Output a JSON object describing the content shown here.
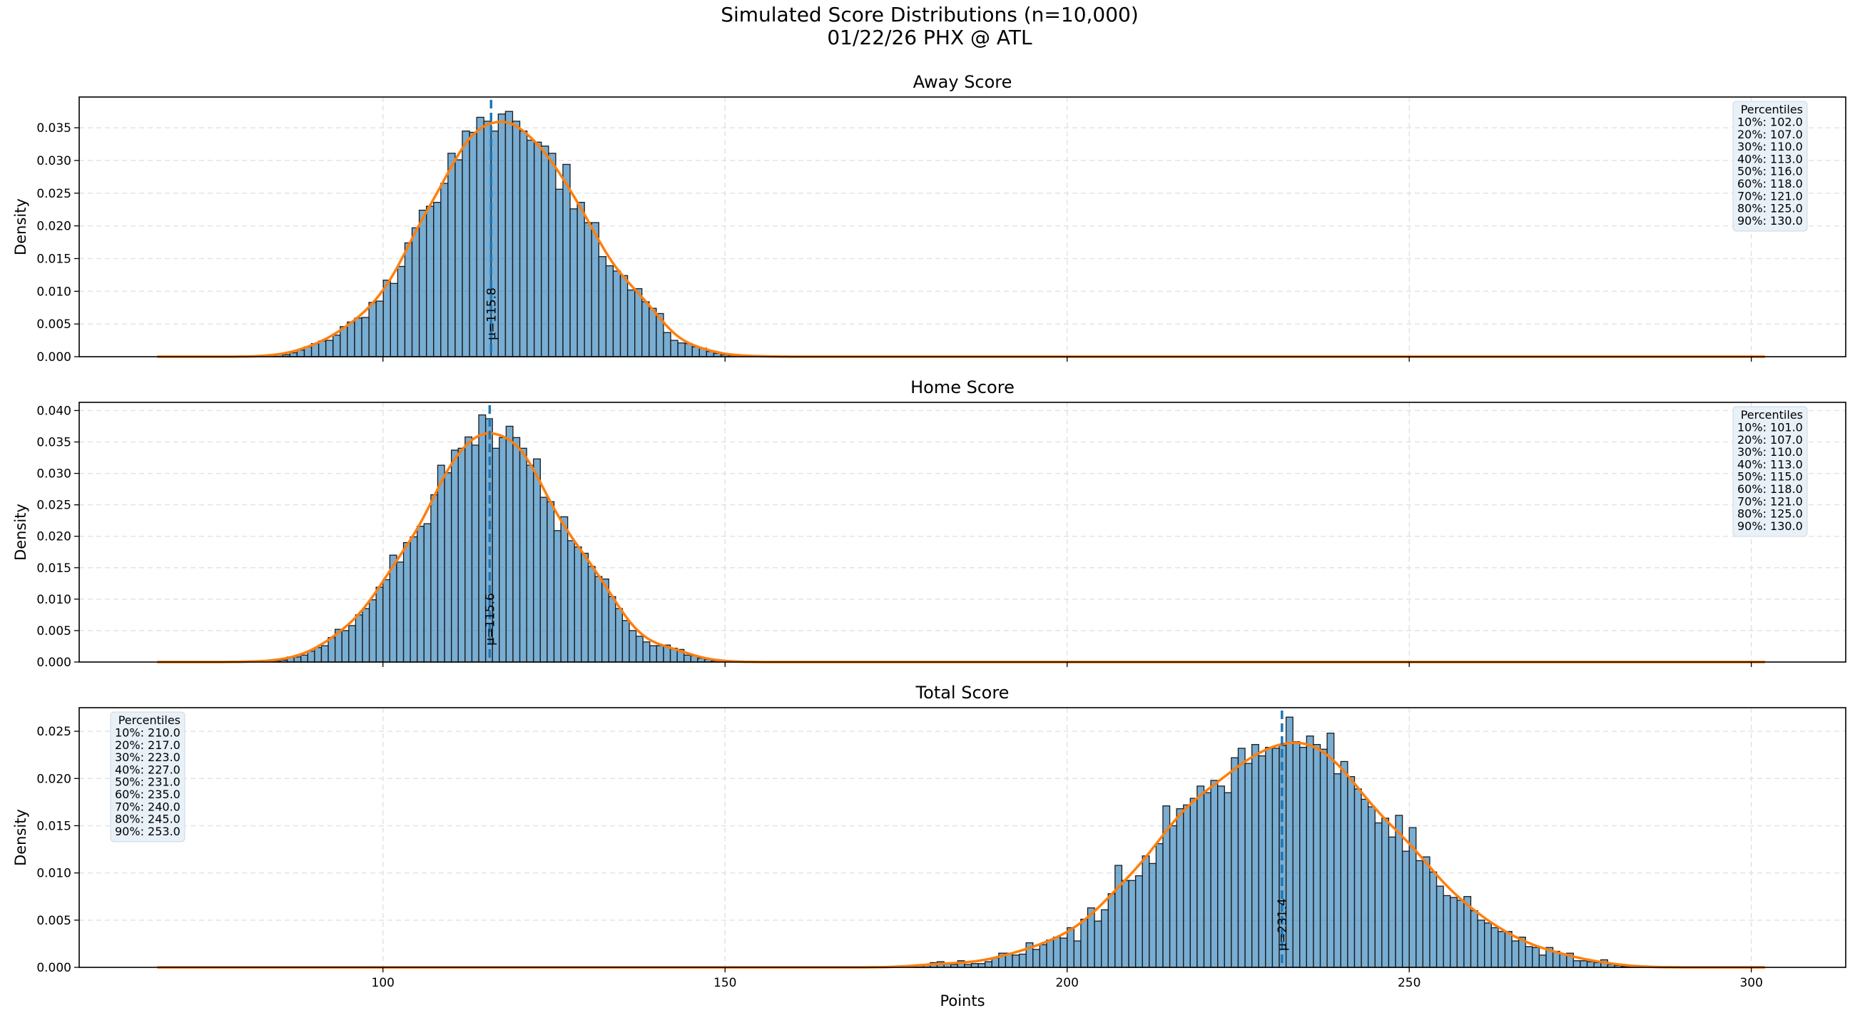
{
  "chart_data": {
    "type": "bar",
    "title": "Simulated Score Distributions (n=10,000)",
    "subtitle": "01/22/26 PHX @ ATL",
    "xlabel": "Points",
    "xlim": [
      55.6,
      313.8
    ],
    "xticks": [
      100,
      150,
      200,
      250,
      300
    ],
    "grid": true,
    "colors": {
      "bars": "#1f77b4",
      "bar_edge": "#1a1a1a",
      "kde": "#ff7f0e",
      "mean_line": "#1f77b4",
      "legend_bg": "#e8f0f8"
    },
    "panels": [
      {
        "title": "Away Score",
        "ylabel": "Density",
        "ylim": [
          0,
          0.0397
        ],
        "yticks": [
          "0.000",
          "0.005",
          "0.010",
          "0.015",
          "0.020",
          "0.025",
          "0.030",
          "0.035"
        ],
        "mean": 115.8,
        "mean_label": "μ=115.8",
        "bin_start": 82.2,
        "bin_width": 1.05,
        "values": [
          0.0001,
          0.0002,
          0.0004,
          0.0003,
          0.0006,
          0.001,
          0.0015,
          0.002,
          0.0024,
          0.0025,
          0.0033,
          0.0046,
          0.0053,
          0.0059,
          0.006,
          0.0083,
          0.0085,
          0.0117,
          0.0112,
          0.0138,
          0.0174,
          0.0197,
          0.0224,
          0.023,
          0.0236,
          0.0265,
          0.0311,
          0.0301,
          0.0345,
          0.0343,
          0.0366,
          0.036,
          0.0345,
          0.0371,
          0.0375,
          0.036,
          0.0345,
          0.0331,
          0.0328,
          0.0322,
          0.0311,
          0.0256,
          0.0294,
          0.0226,
          0.0236,
          0.0205,
          0.0205,
          0.0153,
          0.0139,
          0.0131,
          0.0124,
          0.0102,
          0.0104,
          0.0084,
          0.0074,
          0.0066,
          0.0037,
          0.0025,
          0.0021,
          0.002,
          0.0015,
          0.0013,
          0.0008,
          0.0005,
          0.0003,
          0.0002,
          0.0002,
          0.0001,
          0.0001,
          0.0001
        ],
        "legend_position": "top-right",
        "percentiles_title": "Percentiles",
        "percentiles": [
          "10%: 102.0",
          "20%: 107.0",
          "30%: 110.0",
          "40%: 113.0",
          "50%: 116.0",
          "60%: 118.0",
          "70%: 121.0",
          "80%: 125.0",
          "90%: 130.0"
        ]
      },
      {
        "title": "Home Score",
        "ylabel": "Density",
        "ylim": [
          0,
          0.0413
        ],
        "yticks": [
          "0.000",
          "0.005",
          "0.010",
          "0.015",
          "0.020",
          "0.025",
          "0.030",
          "0.035",
          "0.040"
        ],
        "mean": 115.6,
        "mean_label": "μ=115.6",
        "bin_start": 80,
        "bin_width": 1,
        "values": [
          0.0001,
          0.0001,
          0.0001,
          0.0002,
          0.0002,
          0.0003,
          0.0008,
          0.0008,
          0.0011,
          0.0017,
          0.0023,
          0.0026,
          0.0039,
          0.0052,
          0.005,
          0.0058,
          0.0075,
          0.0085,
          0.0099,
          0.0119,
          0.0131,
          0.017,
          0.0159,
          0.019,
          0.0199,
          0.0216,
          0.022,
          0.0266,
          0.0313,
          0.0301,
          0.0337,
          0.034,
          0.0358,
          0.0345,
          0.0393,
          0.0387,
          0.034,
          0.0357,
          0.0375,
          0.0357,
          0.034,
          0.0313,
          0.0323,
          0.0262,
          0.0255,
          0.0209,
          0.0231,
          0.0193,
          0.0183,
          0.0173,
          0.0152,
          0.0136,
          0.0132,
          0.0104,
          0.0085,
          0.0066,
          0.005,
          0.0041,
          0.0032,
          0.0026,
          0.0026,
          0.0027,
          0.0022,
          0.002,
          0.0011,
          0.001,
          0.0006,
          0.0004,
          0.0002,
          0.0001,
          0.0001,
          0.0001
        ],
        "legend_position": "top-right",
        "percentiles_title": "Percentiles",
        "percentiles": [
          "10%: 101.0",
          "20%: 107.0",
          "30%: 110.0",
          "40%: 113.0",
          "50%: 115.0",
          "60%: 118.0",
          "70%: 121.0",
          "80%: 125.0",
          "90%: 130.0"
        ]
      },
      {
        "title": "Total Score",
        "ylabel": "Density",
        "ylim": [
          0,
          0.0275
        ],
        "yticks": [
          "0.000",
          "0.005",
          "0.010",
          "0.015",
          "0.020",
          "0.025"
        ],
        "mean": 231.4,
        "mean_label": "μ=231.4",
        "bin_start": 177,
        "bin_width": 1,
        "values": [
          0.0001,
          0.0002,
          0.0003,
          0.0005,
          0.0006,
          0.0004,
          0.0003,
          0.0007,
          0.0003,
          0.0004,
          0.0004,
          0.0006,
          0.001,
          0.0015,
          0.0015,
          0.0013,
          0.0014,
          0.0026,
          0.0019,
          0.0024,
          0.0029,
          0.0032,
          0.0031,
          0.0042,
          0.0028,
          0.0051,
          0.0063,
          0.0049,
          0.0061,
          0.0078,
          0.0108,
          0.0092,
          0.0092,
          0.0097,
          0.0118,
          0.011,
          0.0131,
          0.0171,
          0.015,
          0.0168,
          0.0172,
          0.0179,
          0.0192,
          0.0185,
          0.0198,
          0.0192,
          0.0185,
          0.0222,
          0.0232,
          0.0216,
          0.0236,
          0.0224,
          0.0233,
          0.0232,
          0.0235,
          0.0265,
          0.0239,
          0.0233,
          0.0245,
          0.0236,
          0.0231,
          0.0248,
          0.0205,
          0.0218,
          0.0202,
          0.0189,
          0.0178,
          0.017,
          0.0153,
          0.0158,
          0.0138,
          0.0161,
          0.0123,
          0.0148,
          0.0113,
          0.0117,
          0.0101,
          0.0086,
          0.0076,
          0.0074,
          0.0071,
          0.0075,
          0.006,
          0.005,
          0.0047,
          0.0042,
          0.0038,
          0.0038,
          0.0028,
          0.0032,
          0.0022,
          0.0021,
          0.0013,
          0.0021,
          0.0017,
          0.0014,
          0.0015,
          0.0007,
          0.0007,
          0.0006,
          0.0005,
          0.0008,
          0.0003,
          0.0002,
          0.0001,
          0.0001,
          0.0001
        ],
        "legend_position": "top-left",
        "percentiles_title": "Percentiles",
        "percentiles": [
          "10%: 210.0",
          "20%: 217.0",
          "30%: 223.0",
          "40%: 227.0",
          "50%: 231.0",
          "60%: 235.0",
          "70%: 240.0",
          "80%: 245.0",
          "90%: 253.0"
        ]
      }
    ]
  }
}
